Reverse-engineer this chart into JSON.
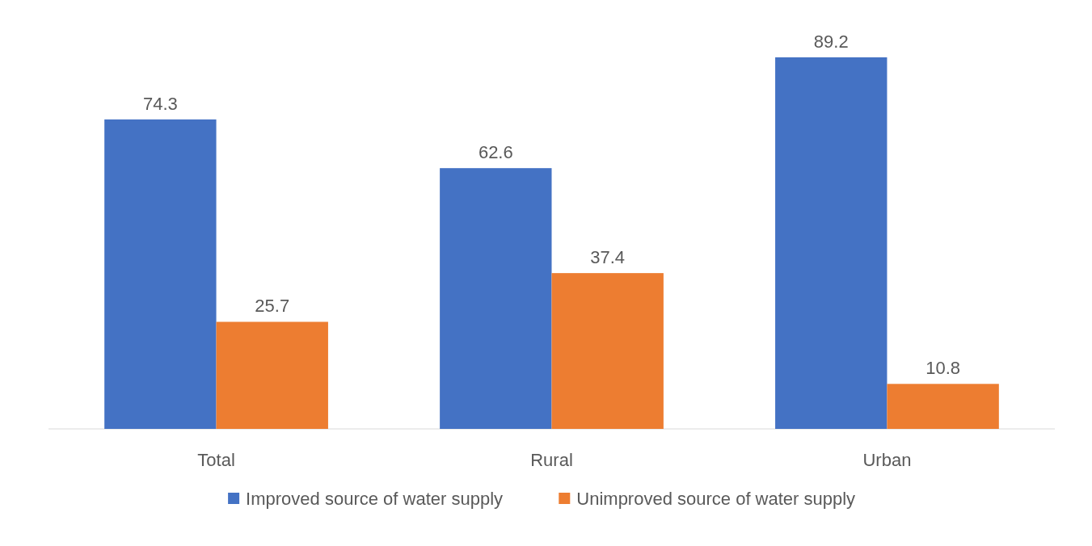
{
  "chart_data": {
    "type": "bar",
    "categories": [
      "Total",
      "Rural",
      "Urban"
    ],
    "series": [
      {
        "name": "Improved source of water supply",
        "color": "#4472c4",
        "values": [
          74.3,
          62.6,
          89.2
        ]
      },
      {
        "name": "Unimproved source of water supply",
        "color": "#ed7d31",
        "values": [
          25.7,
          37.4,
          10.8
        ]
      }
    ],
    "data_labels": true,
    "legend": "bottom"
  }
}
